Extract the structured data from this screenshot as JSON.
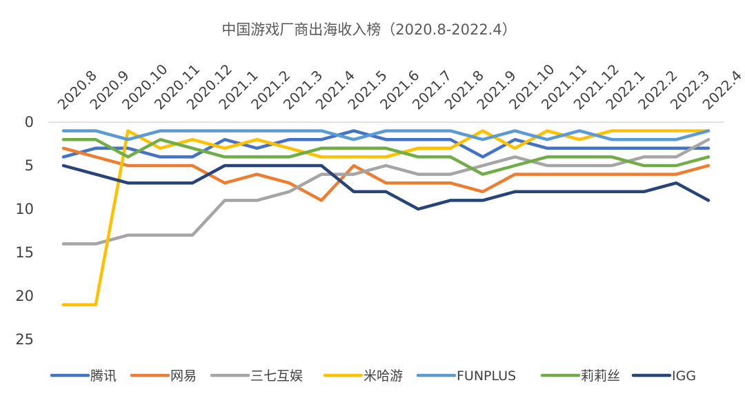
{
  "chart_data": {
    "type": "line",
    "title": "中国游戏厂商出海收入榜（2020.8-2022.4）",
    "xlabel": "",
    "ylabel": "",
    "ylim": [
      0,
      25
    ],
    "y_inverted": true,
    "grid": false,
    "legend_position": "bottom",
    "yticks": [
      0,
      5,
      10,
      15,
      20,
      25
    ],
    "categories": [
      "2020.8",
      "2020.9",
      "2020.10",
      "2020.11",
      "2020.12",
      "2021.1",
      "2021.2",
      "2021.3",
      "2021.4",
      "2021.5",
      "2021.6",
      "2021.7",
      "2021.8",
      "2021.9",
      "2021.10",
      "2021.11",
      "2021.12",
      "2022.1",
      "2022.2",
      "2022.3",
      "2022.4"
    ],
    "series": [
      {
        "name": "腾讯",
        "color": "#4472C4",
        "values": [
          4,
          3,
          3,
          4,
          4,
          2,
          3,
          2,
          2,
          1,
          2,
          2,
          2,
          4,
          2,
          3,
          3,
          3,
          3,
          3,
          3
        ]
      },
      {
        "name": "网易",
        "color": "#ED7D31",
        "values": [
          3,
          4,
          5,
          5,
          5,
          7,
          6,
          7,
          9,
          5,
          7,
          7,
          7,
          8,
          6,
          6,
          6,
          6,
          6,
          6,
          5
        ]
      },
      {
        "name": "三七互娱",
        "color": "#A5A5A5",
        "values": [
          14,
          14,
          13,
          13,
          13,
          9,
          9,
          8,
          6,
          6,
          5,
          6,
          6,
          5,
          4,
          5,
          5,
          5,
          4,
          4,
          2
        ]
      },
      {
        "name": "米哈游",
        "color": "#FFC000",
        "values": [
          21,
          21,
          1,
          3,
          2,
          3,
          2,
          3,
          4,
          4,
          4,
          3,
          3,
          1,
          3,
          1,
          2,
          1,
          1,
          1,
          1
        ]
      },
      {
        "name": "FUNPLUS",
        "color": "#5B9BD5",
        "values": [
          1,
          1,
          2,
          1,
          1,
          1,
          1,
          1,
          1,
          2,
          1,
          1,
          1,
          2,
          1,
          2,
          1,
          2,
          2,
          2,
          1
        ]
      },
      {
        "name": "莉莉丝",
        "color": "#70AD47",
        "values": [
          2,
          2,
          4,
          2,
          3,
          4,
          4,
          4,
          3,
          3,
          3,
          4,
          4,
          6,
          5,
          4,
          4,
          4,
          5,
          5,
          4
        ]
      },
      {
        "name": "IGG",
        "color": "#264478",
        "values": [
          5,
          6,
          7,
          7,
          7,
          5,
          5,
          5,
          5,
          8,
          8,
          10,
          9,
          9,
          8,
          8,
          8,
          8,
          8,
          7,
          9
        ]
      }
    ]
  }
}
